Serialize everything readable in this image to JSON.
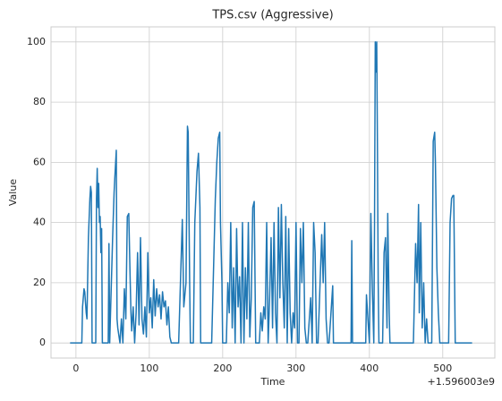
{
  "chart_data": {
    "type": "line",
    "title": "TPS.csv (Aggressive)",
    "x_label": "Time",
    "y_label": "Value",
    "x_offset_label": "+1.596003e9",
    "xlim": [
      -34,
      571
    ],
    "ylim": [
      -5,
      105
    ],
    "xticks": [
      0,
      100,
      200,
      300,
      400,
      500
    ],
    "yticks": [
      0,
      20,
      40,
      60,
      80,
      100
    ],
    "grid": true,
    "x": [
      -8,
      8,
      9,
      11,
      12,
      14,
      15,
      17,
      19,
      20,
      21,
      22,
      27,
      28,
      29,
      30,
      31,
      32,
      33,
      34,
      35,
      36,
      44,
      45,
      46,
      50,
      52,
      53,
      55,
      56,
      57,
      60,
      62,
      64,
      66,
      68,
      70,
      72,
      74,
      75,
      76,
      78,
      80,
      82,
      84,
      86,
      88,
      90,
      92,
      94,
      96,
      98,
      100,
      102,
      104,
      106,
      108,
      110,
      112,
      114,
      116,
      118,
      120,
      122,
      124,
      126,
      128,
      130,
      140,
      145,
      147,
      150,
      152,
      153,
      155,
      156,
      160,
      162,
      165,
      167,
      169,
      170,
      185,
      190,
      192,
      194,
      196,
      197,
      199,
      200,
      205,
      207,
      209,
      211,
      213,
      215,
      217,
      219,
      221,
      223,
      225,
      227,
      229,
      231,
      233,
      235,
      237,
      239,
      241,
      243,
      245,
      250,
      252,
      254,
      256,
      258,
      260,
      262,
      264,
      266,
      268,
      270,
      272,
      274,
      276,
      278,
      280,
      282,
      284,
      286,
      288,
      290,
      292,
      294,
      296,
      298,
      300,
      302,
      304,
      306,
      308,
      310,
      312,
      314,
      316,
      320,
      322,
      324,
      326,
      328,
      330,
      335,
      337,
      339,
      341,
      343,
      345,
      350,
      351,
      375,
      376,
      377,
      395,
      396,
      400,
      402,
      404,
      406,
      407,
      408,
      409,
      410,
      411,
      412,
      413,
      418,
      420,
      422,
      424,
      425,
      427,
      428,
      430,
      440,
      460,
      463,
      465,
      467,
      468,
      470,
      472,
      474,
      476,
      478,
      480,
      485,
      487,
      489,
      490,
      492,
      494,
      496,
      498,
      500,
      508,
      510,
      512,
      514,
      515,
      517,
      520,
      540
    ],
    "series": [
      {
        "name": "TPS",
        "color": "#1f77b4",
        "values": [
          0,
          0,
          12,
          18,
          17,
          10,
          8,
          35,
          48,
          52,
          50,
          0,
          0,
          48,
          58,
          45,
          53,
          40,
          42,
          30,
          38,
          0,
          0,
          33,
          0,
          35,
          50,
          55,
          64,
          8,
          5,
          0,
          8,
          0,
          18,
          8,
          42,
          43,
          20,
          10,
          4,
          12,
          0,
          10,
          30,
          6,
          35,
          8,
          3,
          12,
          2,
          30,
          10,
          15,
          5,
          21,
          9,
          18,
          12,
          16,
          8,
          17,
          12,
          14,
          6,
          12,
          2,
          0,
          0,
          41,
          12,
          20,
          72,
          70,
          20,
          0,
          0,
          40,
          57,
          63,
          45,
          0,
          0,
          48,
          60,
          68,
          70,
          40,
          20,
          0,
          0,
          20,
          10,
          40,
          5,
          25,
          0,
          38,
          12,
          22,
          0,
          40,
          0,
          25,
          8,
          40,
          2,
          15,
          45,
          47,
          0,
          0,
          10,
          4,
          12,
          8,
          40,
          0,
          15,
          35,
          5,
          40,
          10,
          0,
          45,
          15,
          46,
          20,
          5,
          42,
          0,
          38,
          10,
          0,
          10,
          5,
          40,
          0,
          0,
          38,
          20,
          40,
          5,
          0,
          0,
          15,
          0,
          40,
          30,
          0,
          0,
          36,
          20,
          40,
          8,
          0,
          0,
          19,
          0,
          0,
          34,
          0,
          0,
          16,
          0,
          43,
          18,
          0,
          40,
          100,
          90,
          100,
          64,
          20,
          0,
          0,
          30,
          35,
          5,
          43,
          10,
          0,
          0,
          0,
          0,
          33,
          20,
          46,
          10,
          40,
          5,
          20,
          0,
          8,
          0,
          0,
          67,
          70,
          60,
          25,
          10,
          0,
          0,
          0,
          0,
          40,
          48,
          49,
          49,
          0,
          0,
          0
        ]
      }
    ]
  }
}
